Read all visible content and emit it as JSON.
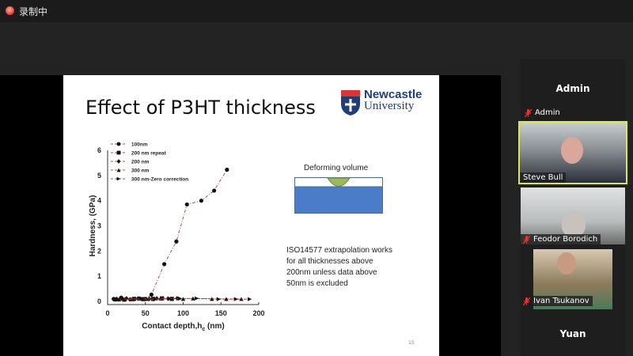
{
  "recording": {
    "label": "录制中",
    "icon": "recording-dot-icon",
    "color": "#e5483a"
  },
  "slide": {
    "title": "Effect of P3HT thickness",
    "logo": {
      "line1": "Newcastle",
      "line2": "University"
    },
    "diagram_label": "Deforming volume",
    "note_lines": [
      "ISO14577 extrapolation works",
      "for all thicknesses above",
      "200nm unless data above",
      "50nm is excluded"
    ],
    "page_number": "15"
  },
  "chart_data": {
    "type": "scatter",
    "xlabel": "Contact depth,h",
    "xlabel_sub": "c",
    "xlabel_unit": " (nm)",
    "ylabel": "Hardness, (GPa)",
    "xlim": [
      0,
      200
    ],
    "ylim": [
      0,
      6
    ],
    "xticks": [
      "0",
      "50",
      "100",
      "150",
      "200"
    ],
    "yticks": [
      "0",
      "1",
      "2",
      "3",
      "4",
      "5",
      "6"
    ],
    "legend_placement": "top-left",
    "series": [
      {
        "name": "100nm",
        "marker": "circle",
        "x": [
          8,
          18,
          30,
          42,
          50,
          58,
          75,
          91,
          105,
          124,
          141,
          158
        ],
        "y": [
          0.1,
          0.15,
          0.08,
          0.12,
          0.1,
          0.27,
          1.48,
          2.38,
          3.85,
          4.0,
          4.4,
          5.23
        ]
      },
      {
        "name": "200 nm repeat",
        "marker": "square",
        "x": [
          10,
          22,
          35,
          47,
          60,
          72,
          85
        ],
        "y": [
          0.08,
          0.07,
          0.1,
          0.09,
          0.1,
          0.12,
          0.1
        ]
      },
      {
        "name": "200 nm",
        "marker": "diamond",
        "x": [
          12,
          25,
          40,
          55,
          65,
          80,
          92
        ],
        "y": [
          0.1,
          0.12,
          0.11,
          0.1,
          0.12,
          0.11,
          0.12
        ]
      },
      {
        "name": "300 nm",
        "marker": "triangle-up",
        "x": [
          15,
          33,
          52,
          70,
          100,
          113,
          138,
          157,
          177
        ],
        "y": [
          0.08,
          0.09,
          0.1,
          0.12,
          0.1,
          0.12,
          0.1,
          0.1,
          0.1
        ]
      },
      {
        "name": "300 nm-Zero correction",
        "marker": "triangle-right",
        "x": [
          20,
          45,
          63,
          82,
          96,
          118,
          147,
          170,
          188
        ],
        "y": [
          0.1,
          0.1,
          0.08,
          0.1,
          0.11,
          0.12,
          0.09,
          0.09,
          0.09
        ]
      }
    ],
    "color": "#8b1a1a"
  },
  "participants": {
    "header": "Admin",
    "admin_tag": "Admin",
    "tiles": [
      {
        "name": "Steve Bull",
        "active": true
      },
      {
        "name": "Feodor Borodich",
        "active": false
      },
      {
        "name": "Ivan Tsukanov",
        "active": false
      }
    ],
    "footer": "Yuan",
    "active_color": "#d7e84a",
    "muted_icon": "mic-muted-icon"
  }
}
